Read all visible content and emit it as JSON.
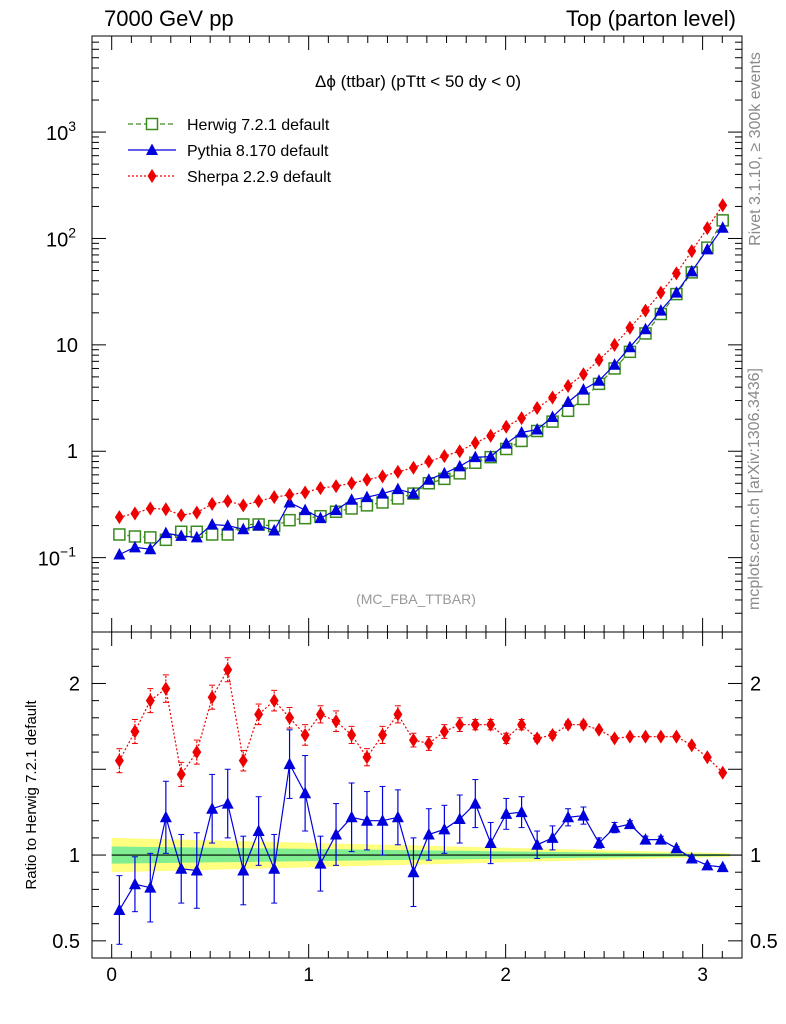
{
  "header": {
    "left": "7000 GeV pp",
    "right": "Top (parton level)"
  },
  "side": {
    "rivet": "Rivet 3.1.10, ≥ 300k events",
    "mcplots": "mcplots.cern.ch [arXiv:1306.3436]"
  },
  "chart_data": {
    "type": "line",
    "title": "Δϕ (ttbar) (pTtt < 50 dy < 0)",
    "watermark": "(MC_FBA_TTBAR)",
    "xlim": [
      -0.1,
      3.2
    ],
    "x_ticks": [
      "0",
      "1",
      "2",
      "3"
    ],
    "main": {
      "yscale": "log",
      "ylim": [
        0.02,
        8000
      ],
      "y_ticks": [
        {
          "v": 0.1,
          "base": "10",
          "exp": "−1"
        },
        {
          "v": 1,
          "base": "1",
          "exp": ""
        },
        {
          "v": 10,
          "base": "10",
          "exp": ""
        },
        {
          "v": 100,
          "base": "10",
          "exp": "2"
        },
        {
          "v": 1000,
          "base": "10",
          "exp": "3"
        }
      ],
      "legend_position": "top-left"
    },
    "ratio": {
      "ylabel": "Ratio to Herwig 7.2.1 default",
      "ylim": [
        0.4,
        2.3
      ],
      "y_ticks": [
        "0.5",
        "1",
        "2"
      ],
      "reference": 1
    },
    "x": [
      0.039,
      0.118,
      0.196,
      0.275,
      0.353,
      0.432,
      0.51,
      0.589,
      0.668,
      0.746,
      0.825,
      0.903,
      0.982,
      1.06,
      1.139,
      1.218,
      1.296,
      1.375,
      1.453,
      1.532,
      1.61,
      1.689,
      1.767,
      1.846,
      1.924,
      2.003,
      2.081,
      2.16,
      2.238,
      2.317,
      2.395,
      2.474,
      2.553,
      2.631,
      2.71,
      2.788,
      2.867,
      2.945,
      3.024,
      3.102
    ],
    "series": [
      {
        "name": "Herwig 7.2.1 default",
        "color": "#3a8a1e",
        "marker": "open-square",
        "linestyle": "dashed",
        "values": [
          0.165,
          0.158,
          0.155,
          0.147,
          0.175,
          0.175,
          0.165,
          0.165,
          0.205,
          0.205,
          0.198,
          0.225,
          0.235,
          0.245,
          0.27,
          0.29,
          0.31,
          0.33,
          0.36,
          0.4,
          0.5,
          0.55,
          0.62,
          0.78,
          0.88,
          1.05,
          1.25,
          1.55,
          1.9,
          2.4,
          3.1,
          4.3,
          6.0,
          8.6,
          12.8,
          19.5,
          30.0,
          48.0,
          82.0,
          148.0
        ],
        "ratio": [
          1.0,
          1.0,
          1.0,
          1.0,
          1.0,
          1.0,
          1.0,
          1.0,
          1.0,
          1.0,
          1.0,
          1.0,
          1.0,
          1.0,
          1.0,
          1.0,
          1.0,
          1.0,
          1.0,
          1.0,
          1.0,
          1.0,
          1.0,
          1.0,
          1.0,
          1.0,
          1.0,
          1.0,
          1.0,
          1.0,
          1.0,
          1.0,
          1.0,
          1.0,
          1.0,
          1.0,
          1.0,
          1.0,
          1.0,
          1.0
        ]
      },
      {
        "name": "Pythia 8.170 default",
        "color": "#0000dd",
        "marker": "filled-triangle",
        "linestyle": "solid",
        "values": [
          0.107,
          0.125,
          0.12,
          0.17,
          0.16,
          0.155,
          0.205,
          0.2,
          0.185,
          0.2,
          0.18,
          0.33,
          0.28,
          0.235,
          0.28,
          0.35,
          0.37,
          0.4,
          0.44,
          0.4,
          0.54,
          0.62,
          0.72,
          0.88,
          0.89,
          1.18,
          1.5,
          1.6,
          2.1,
          2.9,
          3.8,
          4.6,
          6.5,
          9.5,
          14.0,
          21.0,
          31.0,
          49.0,
          79.0,
          126.0
        ],
        "ratio": [
          0.68,
          0.83,
          0.81,
          1.22,
          0.92,
          0.91,
          1.27,
          1.3,
          0.91,
          1.14,
          0.92,
          1.53,
          1.36,
          0.95,
          1.12,
          1.22,
          1.2,
          1.2,
          1.22,
          0.9,
          1.12,
          1.15,
          1.21,
          1.3,
          1.07,
          1.24,
          1.25,
          1.06,
          1.1,
          1.22,
          1.23,
          1.07,
          1.16,
          1.18,
          1.09,
          1.09,
          1.04,
          0.98,
          0.94,
          0.93
        ],
        "ratio_err": [
          0.2,
          0.16,
          0.2,
          0.21,
          0.2,
          0.22,
          0.2,
          0.2,
          0.2,
          0.2,
          0.2,
          0.2,
          0.22,
          0.16,
          0.18,
          0.2,
          0.17,
          0.2,
          0.16,
          0.2,
          0.15,
          0.14,
          0.14,
          0.14,
          0.12,
          0.09,
          0.09,
          0.08,
          0.07,
          0.05,
          0.05,
          0.03,
          0.03,
          0.02,
          0.02,
          0.02,
          0.01,
          0.01,
          0.01,
          0.01
        ]
      },
      {
        "name": "Sherpa 2.2.9 default",
        "color": "#ee0000",
        "marker": "filled-diamond",
        "linestyle": "dotted",
        "values": [
          0.24,
          0.26,
          0.29,
          0.285,
          0.25,
          0.265,
          0.32,
          0.34,
          0.31,
          0.34,
          0.37,
          0.39,
          0.41,
          0.45,
          0.47,
          0.5,
          0.54,
          0.58,
          0.64,
          0.7,
          0.8,
          0.9,
          1.0,
          1.2,
          1.4,
          1.7,
          2.05,
          2.55,
          3.2,
          4.1,
          5.3,
          7.2,
          10.0,
          14.5,
          21.0,
          31.0,
          47.0,
          76.0,
          125.0,
          205.0
        ],
        "ratio": [
          1.55,
          1.72,
          1.9,
          1.97,
          1.47,
          1.6,
          1.92,
          2.08,
          1.55,
          1.82,
          1.9,
          1.8,
          1.7,
          1.82,
          1.78,
          1.7,
          1.57,
          1.7,
          1.82,
          1.67,
          1.65,
          1.72,
          1.76,
          1.76,
          1.76,
          1.68,
          1.76,
          1.68,
          1.7,
          1.76,
          1.76,
          1.73,
          1.68,
          1.69,
          1.69,
          1.69,
          1.69,
          1.64,
          1.57,
          1.48
        ],
        "ratio_err": [
          0.07,
          0.07,
          0.07,
          0.08,
          0.07,
          0.07,
          0.07,
          0.07,
          0.06,
          0.06,
          0.06,
          0.06,
          0.06,
          0.05,
          0.06,
          0.05,
          0.05,
          0.05,
          0.05,
          0.04,
          0.04,
          0.04,
          0.04,
          0.03,
          0.03,
          0.03,
          0.03,
          0.02,
          0.02,
          0.02,
          0.02,
          0.01,
          0.01,
          0.01,
          0.01,
          0.01,
          0.01,
          0.01,
          0.01,
          0.01
        ]
      }
    ],
    "ref_band": {
      "inner_color": "#80ee90",
      "outer_color": "#ffff80",
      "x_range": [
        0,
        3.14
      ],
      "inner_halfwidth_start": 0.05,
      "inner_halfwidth_end": 0.005,
      "outer_halfwidth_start": 0.1,
      "outer_halfwidth_end": 0.01
    }
  }
}
